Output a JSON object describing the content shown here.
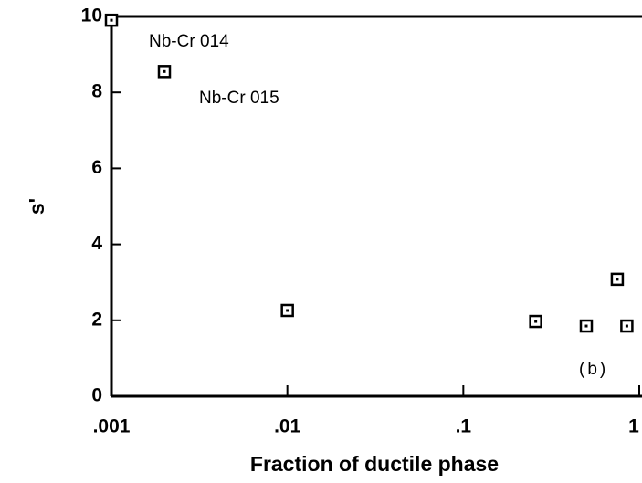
{
  "chart_data": {
    "type": "scatter",
    "xlabel": "Fraction of ductile phase",
    "ylabel": "s'",
    "xscale": "log",
    "xlim": [
      0.001,
      1
    ],
    "ylim": [
      0,
      10
    ],
    "xticks": [
      {
        "value": 0.001,
        "label": ".001"
      },
      {
        "value": 0.01,
        "label": ".01"
      },
      {
        "value": 0.1,
        "label": ".1"
      },
      1
    ],
    "yticks": [
      0,
      2,
      4,
      6,
      8,
      10
    ],
    "grid": false,
    "color": "#000000",
    "x": [
      0.001,
      0.002,
      0.01,
      0.258,
      0.5,
      0.75,
      0.85
    ],
    "values": [
      9.9,
      8.55,
      2.26,
      1.97,
      1.85,
      3.08,
      1.85
    ],
    "annotations": [
      "Nb-Cr 014",
      "Nb-Cr 015",
      "(b)"
    ]
  }
}
